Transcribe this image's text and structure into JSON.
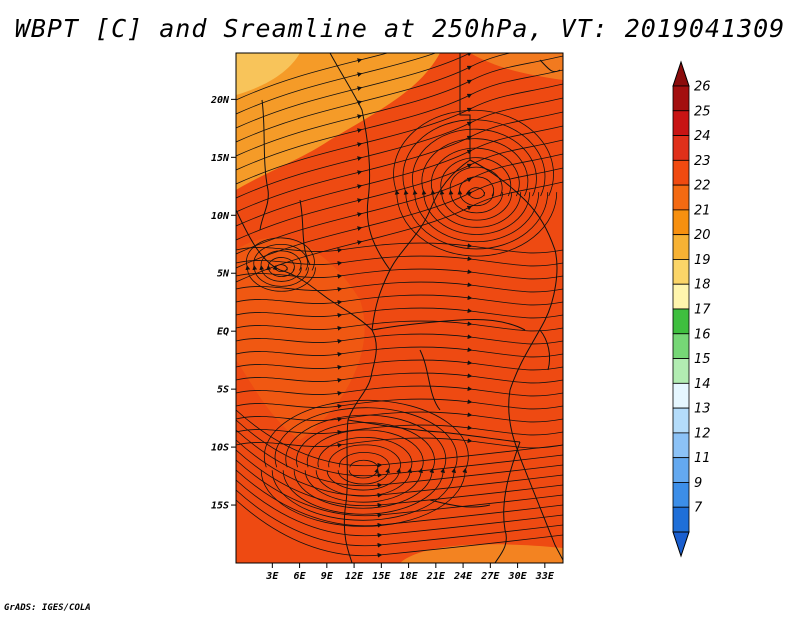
{
  "title": "WBPT [C] and Sreamline at 250hPa, VT: 2019041309",
  "credit": "GrADS: IGES/COLA",
  "map": {
    "lon_range": [
      -1,
      35
    ],
    "lat_range": [
      -20,
      24
    ],
    "lat_ticks": [
      {
        "value": 20,
        "label": "20N"
      },
      {
        "value": 15,
        "label": "15N"
      },
      {
        "value": 10,
        "label": "10N"
      },
      {
        "value": 5,
        "label": "5N"
      },
      {
        "value": 0,
        "label": "EQ"
      },
      {
        "value": -5,
        "label": "5S"
      },
      {
        "value": -10,
        "label": "10S"
      },
      {
        "value": -15,
        "label": "15S"
      }
    ],
    "lon_ticks": [
      {
        "value": 3,
        "label": "3E"
      },
      {
        "value": 6,
        "label": "6E"
      },
      {
        "value": 9,
        "label": "9E"
      },
      {
        "value": 12,
        "label": "12E"
      },
      {
        "value": 15,
        "label": "15E"
      },
      {
        "value": 18,
        "label": "18E"
      },
      {
        "value": 21,
        "label": "21E"
      },
      {
        "value": 24,
        "label": "24E"
      },
      {
        "value": 27,
        "label": "27E"
      },
      {
        "value": 30,
        "label": "30E"
      },
      {
        "value": 33,
        "label": "33E"
      }
    ],
    "field_colors": {
      "dominant": "#ee4a12",
      "warmer_patch": "#f26412",
      "cooler_patch": "#f59b28",
      "coolest_patch": "#f8c45a"
    },
    "line_color": "#111111"
  },
  "colorbar": {
    "levels": [
      {
        "label": "26",
        "color": "#a30f0f"
      },
      {
        "label": "25",
        "color": "#c81414"
      },
      {
        "label": "24",
        "color": "#e0301a"
      },
      {
        "label": "23",
        "color": "#f04a10"
      },
      {
        "label": "22",
        "color": "#f46a12"
      },
      {
        "label": "21",
        "color": "#f7900f"
      },
      {
        "label": "20",
        "color": "#f7b234"
      },
      {
        "label": "19",
        "color": "#fbd568"
      },
      {
        "label": "18",
        "color": "#fff5ad"
      },
      {
        "label": "17",
        "color": "#3fbf3f"
      },
      {
        "label": "16",
        "color": "#76d776"
      },
      {
        "label": "15",
        "color": "#b2ecb2"
      },
      {
        "label": "14",
        "color": "#e6f7ff"
      },
      {
        "label": "13",
        "color": "#b4dcfa"
      },
      {
        "label": "12",
        "color": "#8cc2f6"
      },
      {
        "label": "11",
        "color": "#64a9f0"
      },
      {
        "label": "9",
        "color": "#3c8ee8"
      },
      {
        "label": "7",
        "color": "#1f6fd8"
      }
    ],
    "top_cap_color": "#8b0c0c",
    "bottom_cap_color": "#1a5fd0"
  }
}
